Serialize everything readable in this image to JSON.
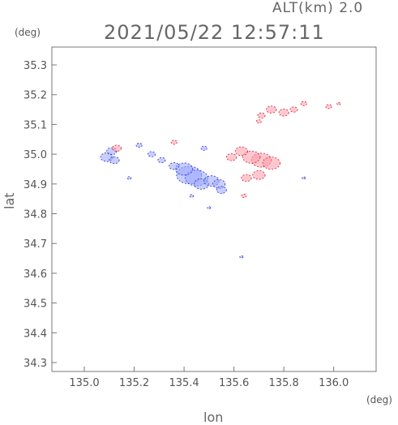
{
  "header": {
    "altitude_label": "ALT(km) 2.0",
    "timestamp": "2021/05/22 12:57:11",
    "y_unit": "(deg)",
    "x_unit": "(deg)"
  },
  "chart_data": {
    "type": "scatter",
    "xlabel": "lon",
    "ylabel": "lat",
    "xlim": [
      134.87,
      136.17
    ],
    "ylim": [
      34.27,
      35.36
    ],
    "xticks": [
      "135.0",
      "135.2",
      "135.4",
      "135.6",
      "135.8",
      "136.0"
    ],
    "yticks": [
      "34.3",
      "34.4",
      "34.5",
      "34.6",
      "34.7",
      "34.8",
      "34.9",
      "35.0",
      "35.1",
      "35.2",
      "35.3"
    ],
    "grid": false,
    "colors": {
      "positive": "#ff9aa8",
      "negative": "#9aa6ff",
      "positive_edge": "#cc2233",
      "negative_edge": "#2233cc"
    },
    "series": [
      {
        "sign": "negative",
        "points": [
          [
            135.09,
            34.99,
            0.025
          ],
          [
            135.11,
            35.01,
            0.02
          ],
          [
            135.12,
            34.98,
            0.02
          ],
          [
            135.42,
            34.93,
            0.05
          ],
          [
            135.45,
            34.92,
            0.045
          ],
          [
            135.4,
            34.95,
            0.035
          ],
          [
            135.47,
            34.9,
            0.03
          ],
          [
            135.51,
            34.91,
            0.03
          ],
          [
            135.54,
            34.9,
            0.025
          ],
          [
            135.55,
            34.88,
            0.02
          ],
          [
            135.36,
            34.96,
            0.02
          ],
          [
            135.31,
            34.98,
            0.015
          ],
          [
            135.27,
            35.0,
            0.015
          ],
          [
            135.22,
            35.03,
            0.012
          ],
          [
            135.48,
            35.02,
            0.012
          ],
          [
            135.63,
            34.655,
            0.006
          ],
          [
            135.5,
            34.82,
            0.005
          ],
          [
            135.88,
            34.92,
            0.006
          ],
          [
            135.18,
            34.92,
            0.008
          ],
          [
            135.43,
            34.86,
            0.008
          ]
        ]
      },
      {
        "sign": "positive",
        "points": [
          [
            135.13,
            35.02,
            0.018
          ],
          [
            135.36,
            35.04,
            0.012
          ],
          [
            135.71,
            34.98,
            0.04
          ],
          [
            135.75,
            34.97,
            0.035
          ],
          [
            135.67,
            34.99,
            0.035
          ],
          [
            135.63,
            35.01,
            0.025
          ],
          [
            135.59,
            34.99,
            0.02
          ],
          [
            135.7,
            34.93,
            0.025
          ],
          [
            135.65,
            34.92,
            0.02
          ],
          [
            135.64,
            34.86,
            0.01
          ],
          [
            135.8,
            35.14,
            0.02
          ],
          [
            135.75,
            35.15,
            0.02
          ],
          [
            135.84,
            35.15,
            0.015
          ],
          [
            135.71,
            35.13,
            0.015
          ],
          [
            135.88,
            35.17,
            0.012
          ],
          [
            135.98,
            35.16,
            0.012
          ],
          [
            136.02,
            35.17,
            0.007
          ],
          [
            135.7,
            35.11,
            0.01
          ]
        ]
      }
    ]
  }
}
